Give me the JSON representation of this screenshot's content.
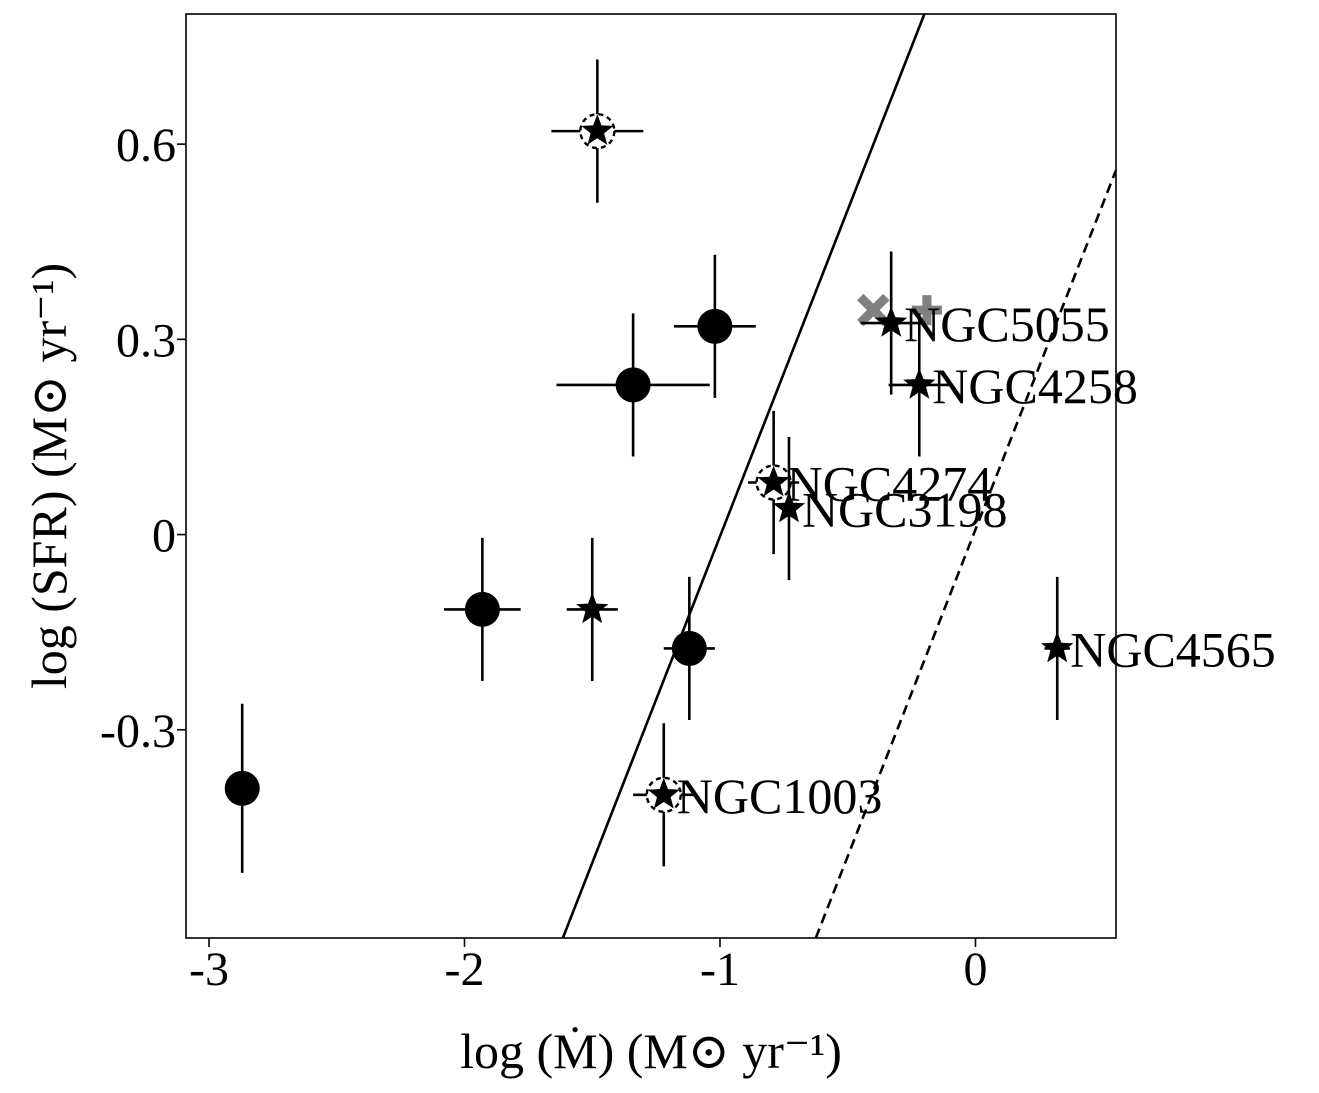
{
  "chart_data": {
    "type": "scatter",
    "xlabel": "log (Ṁ) (M⊙ yr⁻¹)",
    "ylabel": "log (SFR) (M⊙ yr⁻¹)",
    "xlim": [
      -3.09,
      0.55
    ],
    "ylim": [
      -0.62,
      0.8
    ],
    "xticks": [
      -3,
      -2,
      -1,
      0
    ],
    "xtick_labels": [
      "-3",
      "-2",
      "-1",
      "0"
    ],
    "yticks": [
      -0.3,
      0,
      0.3,
      0.6
    ],
    "ytick_labels": [
      "-0.3",
      "0",
      "0.3",
      "0.6"
    ],
    "grid": false,
    "legend": "none",
    "colors": {
      "points": "#000000",
      "gray_markers": "#808080",
      "background": "#ffffff"
    },
    "circles": [
      {
        "x": -2.87,
        "y": -0.39,
        "xerr": 0.0,
        "yerr": 0.13
      },
      {
        "x": -1.93,
        "y": -0.115,
        "xerr": 0.15,
        "yerr": 0.11
      },
      {
        "x": -1.34,
        "y": 0.23,
        "xerr": 0.3,
        "yerr": 0.11
      },
      {
        "x": -1.02,
        "y": 0.32,
        "xerr": 0.16,
        "yerr": 0.11
      },
      {
        "x": -1.12,
        "y": -0.175,
        "xerr": 0.1,
        "yerr": 0.11
      }
    ],
    "stars": [
      {
        "x": -1.48,
        "y": 0.62,
        "xerr": 0.18,
        "yerr": 0.11,
        "dashed_circle": true,
        "label": ""
      },
      {
        "x": -1.5,
        "y": -0.115,
        "xerr": 0.1,
        "yerr": 0.11,
        "dashed_circle": false,
        "label": ""
      },
      {
        "x": -0.33,
        "y": 0.325,
        "xerr": 0.12,
        "yerr": 0.11,
        "dashed_circle": false,
        "label": "NGC5055"
      },
      {
        "x": -0.22,
        "y": 0.23,
        "xerr": 0.12,
        "yerr": 0.11,
        "dashed_circle": false,
        "label": "NGC4258"
      },
      {
        "x": -0.79,
        "y": 0.08,
        "xerr": 0.1,
        "yerr": 0.11,
        "dashed_circle": true,
        "label": "NGC4274"
      },
      {
        "x": -0.73,
        "y": 0.04,
        "xerr": 0.0,
        "yerr": 0.11,
        "dashed_circle": false,
        "label": "NGC3198"
      },
      {
        "x": 0.32,
        "y": -0.175,
        "xerr": 0.05,
        "yerr": 0.11,
        "dashed_circle": false,
        "label": "NGC4565"
      },
      {
        "x": -1.22,
        "y": -0.4,
        "xerr": 0.12,
        "yerr": 0.11,
        "dashed_circle": true,
        "label": "NGC1003"
      }
    ],
    "gray_x": [
      {
        "x": -0.4,
        "y": 0.345
      }
    ],
    "gray_plus": [
      {
        "x": -0.19,
        "y": 0.345
      }
    ],
    "lines": [
      {
        "style": "solid",
        "points": [
          [
            -1.615,
            -0.62
          ],
          [
            -0.2,
            0.8
          ]
        ]
      },
      {
        "style": "dashed",
        "points": [
          [
            -0.625,
            -0.62
          ],
          [
            0.55,
            0.56
          ]
        ]
      }
    ]
  }
}
